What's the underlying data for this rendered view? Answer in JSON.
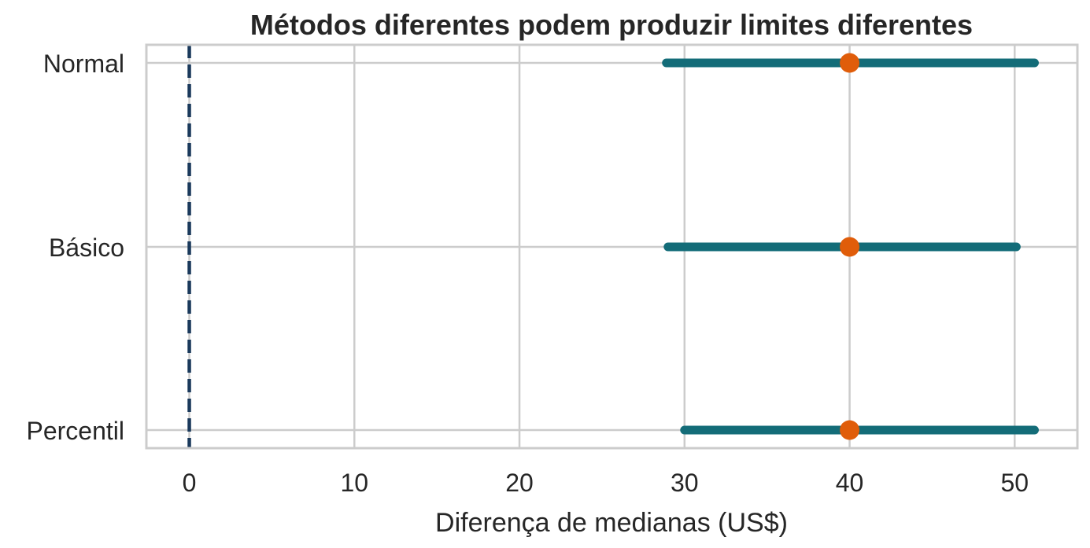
{
  "chart_data": {
    "type": "interval",
    "title": "Métodos diferentes podem produzir limites diferentes",
    "xlabel": "Diferença de medianas (US$)",
    "ylabel": "",
    "xlim": [
      -2.6,
      53.8
    ],
    "xticks": [
      0,
      10,
      20,
      30,
      40,
      50
    ],
    "xtick_labels": [
      "0",
      "10",
      "20",
      "30",
      "40",
      "50"
    ],
    "grid": true,
    "reference_line": {
      "x": 0,
      "style": "dashed",
      "color": "#1b3a5c"
    },
    "categories": [
      "Normal",
      "Básico",
      "Percentil"
    ],
    "intervals": [
      {
        "category": "Normal",
        "lower": 28.9,
        "estimate": 40.0,
        "upper": 51.2
      },
      {
        "category": "Básico",
        "lower": 29.0,
        "estimate": 40.0,
        "upper": 50.1
      },
      {
        "category": "Percentil",
        "lower": 30.0,
        "estimate": 40.0,
        "upper": 51.2
      }
    ],
    "colors": {
      "interval": "#136c78",
      "estimate": "#e05d0a",
      "grid": "#cccccc",
      "frame": "#cccccc"
    }
  }
}
